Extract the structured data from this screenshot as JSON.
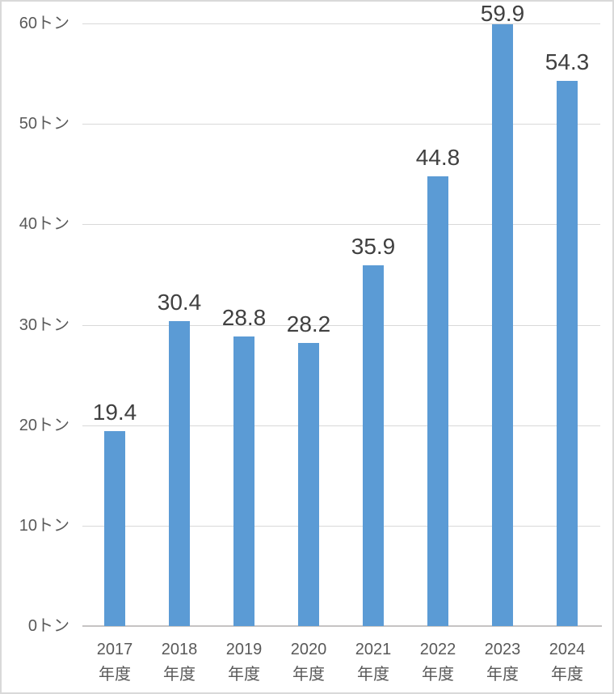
{
  "chart_data": {
    "type": "bar",
    "title": "",
    "xlabel": "",
    "ylabel": "",
    "categories": [
      "2017年度",
      "2018年度",
      "2019年度",
      "2020年度",
      "2021年度",
      "2022年度",
      "2023年度",
      "2024年度"
    ],
    "x_tick_lines": [
      [
        "2017",
        "年度"
      ],
      [
        "2018",
        "年度"
      ],
      [
        "2019",
        "年度"
      ],
      [
        "2020",
        "年度"
      ],
      [
        "2021",
        "年度"
      ],
      [
        "2022",
        "年度"
      ],
      [
        "2023",
        "年度"
      ],
      [
        "2024",
        "年度"
      ]
    ],
    "values": [
      19.4,
      30.4,
      28.8,
      28.2,
      35.9,
      44.8,
      59.9,
      54.3
    ],
    "data_labels": [
      "19.4",
      "30.4",
      "28.8",
      "28.2",
      "35.9",
      "44.8",
      "59.9",
      "54.3"
    ],
    "y_ticks": [
      0,
      10,
      20,
      30,
      40,
      50,
      60
    ],
    "y_tick_labels": [
      "0トン",
      "10トン",
      "20トン",
      "30トン",
      "40トン",
      "50トン",
      "60トン"
    ],
    "ylim": [
      0,
      60
    ],
    "grid": "horizontal",
    "legend": null,
    "colors": {
      "bar": "#5B9BD5",
      "gridline": "#D9D9D9",
      "axis_line": "#C6C4C4",
      "axis_text": "#595959",
      "data_label_text": "#404040",
      "background": "#FFFFFF",
      "chart_border": "#D9D9D9"
    }
  }
}
